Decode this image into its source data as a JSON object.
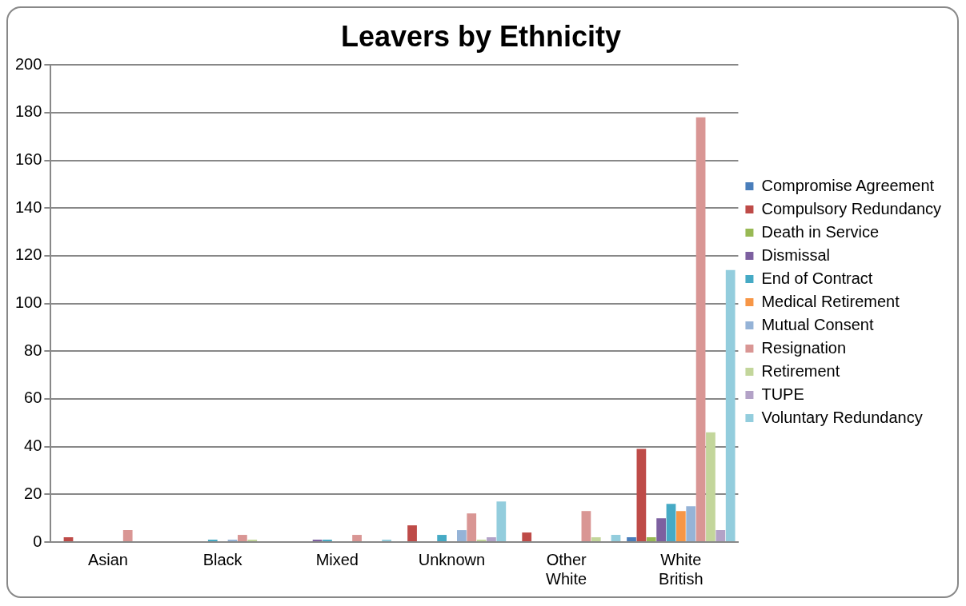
{
  "chart_data": {
    "type": "bar",
    "title": "Leavers by Ethnicity",
    "categories": [
      "Asian",
      "Black",
      "Mixed",
      "Unknown",
      "Other White",
      "White British"
    ],
    "series": [
      {
        "name": "Compromise Agreement",
        "color": "#4a7ebb",
        "values": [
          0,
          0,
          0,
          0,
          0,
          2
        ]
      },
      {
        "name": "Compulsory Redundancy",
        "color": "#be4b48",
        "values": [
          2,
          0,
          0,
          7,
          4,
          39
        ]
      },
      {
        "name": "Death in Service",
        "color": "#98b954",
        "values": [
          0,
          0,
          0,
          0,
          0,
          2
        ]
      },
      {
        "name": "Dismissal",
        "color": "#7d60a0",
        "values": [
          0,
          0,
          1,
          0,
          0,
          10
        ]
      },
      {
        "name": "End of Contract",
        "color": "#46aac5",
        "values": [
          0,
          1,
          1,
          3,
          0,
          16
        ]
      },
      {
        "name": "Medical Retirement",
        "color": "#f79646",
        "values": [
          0,
          0,
          0,
          0,
          0,
          13
        ]
      },
      {
        "name": "Mutual Consent",
        "color": "#95b3d7",
        "values": [
          0,
          1,
          0,
          5,
          0,
          15
        ]
      },
      {
        "name": "Resignation",
        "color": "#d99694",
        "values": [
          5,
          3,
          3,
          12,
          13,
          178
        ]
      },
      {
        "name": "Retirement",
        "color": "#c3d69b",
        "values": [
          0,
          1,
          0,
          1,
          2,
          46
        ]
      },
      {
        "name": "TUPE",
        "color": "#b3a2c7",
        "values": [
          0,
          0,
          0,
          2,
          0,
          5
        ]
      },
      {
        "name": "Voluntary Redundancy",
        "color": "#93cddd",
        "values": [
          0,
          0,
          1,
          17,
          3,
          114
        ]
      }
    ],
    "ylim": [
      0,
      200
    ],
    "yticks": [
      0,
      20,
      40,
      60,
      80,
      100,
      120,
      140,
      160,
      180,
      200
    ],
    "grid": "y",
    "legend": "right"
  }
}
